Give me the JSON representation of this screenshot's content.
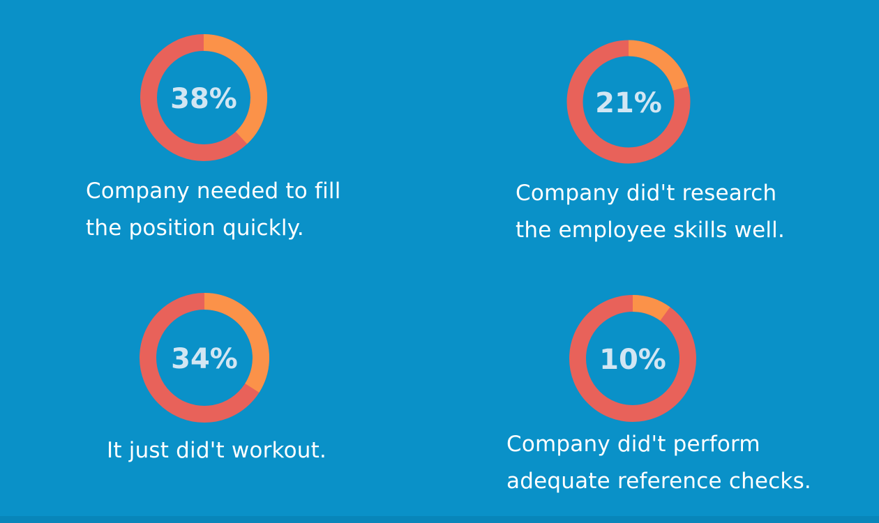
{
  "chart_data": [
    {
      "type": "pie",
      "values": [
        38
      ],
      "center_label": "38%",
      "caption_lines": [
        "Company needed to fill",
        "the position quickly."
      ]
    },
    {
      "type": "pie",
      "values": [
        21
      ],
      "center_label": "21%",
      "caption_lines": [
        "Company did't research",
        "the employee skills well."
      ]
    },
    {
      "type": "pie",
      "values": [
        34
      ],
      "center_label": "34%",
      "caption_lines": [
        "It just did't workout."
      ]
    },
    {
      "type": "pie",
      "values": [
        10
      ],
      "center_label": "10%",
      "caption_lines": [
        "Company did't perform",
        "adequate reference checks."
      ]
    }
  ],
  "colors": {
    "background": "#0a91c8",
    "highlight_segment": "#fb9249",
    "remainder_segment": "#e8625a",
    "percent_text": "#d2e6f3",
    "caption_text": "#ffffff"
  }
}
